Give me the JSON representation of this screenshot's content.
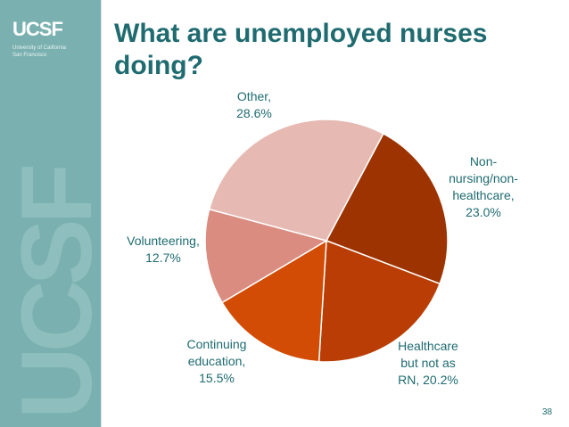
{
  "brand": {
    "logo_text": "UCSF",
    "logo_sub_1": "University of California",
    "logo_sub_2": "San Francisco",
    "watermark": "UCSF"
  },
  "slide": {
    "title": "What are unemployed nurses doing?",
    "page_number": "38"
  },
  "colors": {
    "sidebar": "#7ab1b0",
    "title": "#1f6b70"
  },
  "chart_data": {
    "type": "pie",
    "title": "",
    "slices": [
      {
        "label": [
          "Non-",
          "nursing/non-",
          "healthcare,",
          "23.0%"
        ],
        "value": 23.0,
        "color": "#9c3300"
      },
      {
        "label": [
          "Healthcare",
          "but not as",
          "RN, 20.2%"
        ],
        "value": 20.2,
        "color": "#b93d04"
      },
      {
        "label": [
          "Continuing",
          "education,",
          "15.5%"
        ],
        "value": 15.5,
        "color": "#d24c06"
      },
      {
        "label": [
          "Volunteering,",
          "12.7%"
        ],
        "value": 12.7,
        "color": "#da8c80"
      },
      {
        "label": [
          "Other,",
          "28.6%"
        ],
        "value": 28.6,
        "color": "#e6bab3"
      }
    ]
  }
}
